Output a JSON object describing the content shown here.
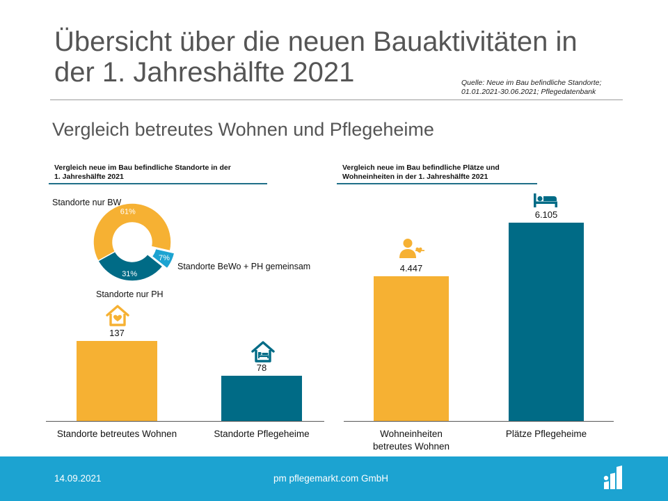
{
  "title": "Übersicht über die neuen Bauaktivitäten in der 1. Jahreshälfte 2021",
  "source": [
    "Quelle: Neue im Bau befindliche Standorte;",
    "01.01.2021-30.06.2021; Pflegedatenbank"
  ],
  "subtitle": "Vergleich betreutes Wohnen und Pflegeheime",
  "colors": {
    "yellow": "#f6b133",
    "teal": "#006b86",
    "light_blue": "#1ca3d1",
    "rule": "#1f6f88"
  },
  "chart_data": [
    {
      "type": "pie",
      "title": [
        "Vergleich neue im Bau befindliche Standorte in der",
        "1. Jahreshälfte 2021"
      ],
      "slices": [
        {
          "label": "Standorte nur BW",
          "value": 61,
          "pct_label": "61%",
          "color": "#f6b133"
        },
        {
          "label": "Standorte BeWo + PH gemeinsam",
          "value": 7,
          "pct_label": "7%",
          "color": "#1ca3d1",
          "exploded": true
        },
        {
          "label": "Standorte nur PH",
          "value": 31,
          "pct_label": "31%",
          "color": "#006b86"
        }
      ]
    },
    {
      "type": "bar",
      "title": "",
      "categories": [
        "Standorte betreutes Wohnen",
        "Standorte Pflegeheime"
      ],
      "values": [
        137,
        78
      ],
      "value_labels": [
        "137",
        "78"
      ],
      "colors": [
        "#f6b133",
        "#006b86"
      ],
      "icons": [
        "house-heart-icon",
        "house-bed-icon"
      ],
      "ylim": [
        0,
        215
      ]
    },
    {
      "type": "bar",
      "title": [
        "Vergleich neue im Bau befindliche Plätze und",
        "Wohneinheiten in der 1. Jahreshälfte 2021"
      ],
      "categories": [
        [
          "Wohneinheiten",
          "betreutes Wohnen"
        ],
        [
          "Plätze Pflegeheime"
        ]
      ],
      "values": [
        4447,
        6105
      ],
      "value_labels": [
        "4.447",
        "6.105"
      ],
      "colors": [
        "#f6b133",
        "#006b86"
      ],
      "icons": [
        "person-heart-icon",
        "bed-icon"
      ],
      "ylim": [
        0,
        6950
      ]
    }
  ],
  "footer": {
    "date": "14.09.2021",
    "company": "pm pflegemarkt.com GmbH",
    "logo": "pflegemarkt-logo-icon"
  }
}
